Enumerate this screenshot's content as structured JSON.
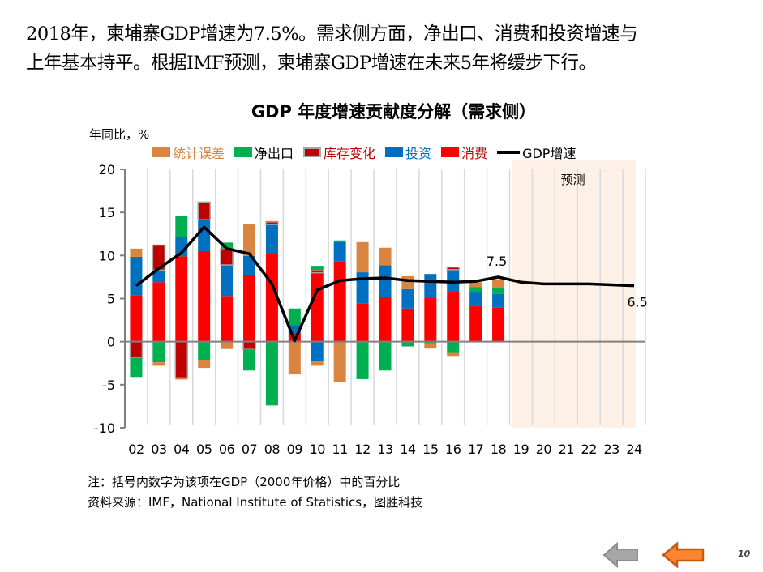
{
  "intro": {
    "line1": "2018年，柬埔寨GDP增速为7.5%。需求侧方面，净出口、消费和投资增速与",
    "line2": "上年基本持平。根据IMF预测，柬埔寨GDP增速在未来5年将缓步下行。"
  },
  "notes": {
    "note": "注：括号内数字为该项在GDP（2000年价格）中的百分比",
    "source": "资料来源：IMF，National  Institute of Statistics，图胜科技"
  },
  "navigation": {
    "back_label": "back",
    "prev_label": "previous",
    "page_number": "10"
  },
  "colors": {
    "stat_error": "#D9843F",
    "net_export": "#00B050",
    "inventory": "#C00000",
    "investment": "#0070C0",
    "consumption": "#FF0000",
    "gdp": "#000000",
    "forecast_bg": "#FDF1E7",
    "grid": "#D9D9D9",
    "axis": "#808080"
  },
  "chart_data": {
    "type": "bar",
    "stacked": true,
    "title": "GDP 年度增速贡献度分解（需求侧）",
    "ylabel": "年同比，%",
    "xlabel": "",
    "ylim": [
      -10,
      20
    ],
    "yticks": [
      20,
      15,
      10,
      5,
      0,
      -5,
      -10
    ],
    "grid": true,
    "legend_position": "top",
    "categories": [
      "02",
      "03",
      "04",
      "05",
      "06",
      "07",
      "08",
      "09",
      "10",
      "11",
      "12",
      "13",
      "14",
      "15",
      "16",
      "17",
      "18",
      "19",
      "20",
      "21",
      "22",
      "23",
      "24"
    ],
    "forecast_region": {
      "from": "19",
      "to": "24",
      "label": "预测"
    },
    "series": [
      {
        "name": "消费",
        "key": "consumption",
        "values": [
          5.4,
          6.9,
          9.9,
          10.5,
          5.3,
          7.75,
          10.2,
          0.95,
          8.0,
          9.3,
          4.4,
          5.2,
          3.85,
          5.1,
          5.7,
          4.1,
          3.95,
          null,
          null,
          null,
          null,
          null,
          null
        ]
      },
      {
        "name": "投资",
        "key": "investment",
        "values": [
          4.45,
          1.4,
          2.2,
          3.65,
          3.6,
          2.2,
          3.4,
          0.95,
          -2.3,
          2.3,
          3.65,
          3.65,
          2.25,
          2.75,
          2.65,
          1.6,
          1.6,
          null,
          null,
          null,
          null,
          null,
          null
        ]
      },
      {
        "name": "库存变化",
        "key": "inventory",
        "values": [
          -1.9,
          2.9,
          -4.2,
          2.05,
          1.9,
          -0.9,
          0.3,
          0,
          0.35,
          0,
          0,
          0,
          0,
          0,
          0.3,
          0,
          0,
          null,
          null,
          null,
          null,
          null,
          null
        ]
      },
      {
        "name": "净出口",
        "key": "net_export",
        "values": [
          -2.2,
          -2.4,
          2.5,
          -2.1,
          0.7,
          -2.45,
          -7.4,
          1.95,
          0.45,
          0.15,
          -4.35,
          -3.35,
          -0.55,
          -0.2,
          -1.3,
          0.65,
          0.75,
          null,
          null,
          null,
          null,
          null,
          null
        ]
      },
      {
        "name": "统计误差",
        "key": "stat_error",
        "values": [
          0.95,
          -0.4,
          -0.2,
          -0.95,
          -0.85,
          3.65,
          0.1,
          -3.8,
          -0.5,
          -4.65,
          3.5,
          2.05,
          1.5,
          -0.6,
          -0.45,
          0.55,
          0.95,
          null,
          null,
          null,
          null,
          null,
          null
        ]
      },
      {
        "name": "GDP增速",
        "key": "gdp",
        "type": "line",
        "values": [
          6.5,
          8.5,
          10.3,
          13.3,
          10.8,
          10.2,
          6.7,
          0.1,
          6.0,
          7.1,
          7.3,
          7.4,
          7.1,
          7.0,
          6.9,
          7.0,
          7.5,
          6.9,
          6.7,
          6.7,
          6.7,
          6.6,
          6.5
        ]
      }
    ],
    "legend": [
      {
        "label": "统计误差",
        "key": "stat_error"
      },
      {
        "label": "净出口",
        "key": "net_export"
      },
      {
        "label": "库存变化",
        "key": "inventory"
      },
      {
        "label": "投资",
        "key": "investment"
      },
      {
        "label": "消费",
        "key": "consumption"
      },
      {
        "label": "GDP增速",
        "key": "gdp"
      }
    ],
    "annotations": [
      {
        "category": "18",
        "text": "7.5"
      },
      {
        "category": "24",
        "text": "6.5"
      }
    ]
  }
}
